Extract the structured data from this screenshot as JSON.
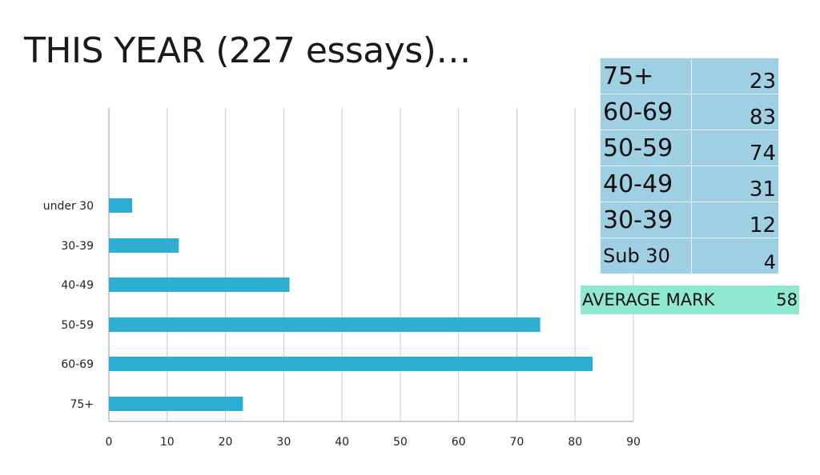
{
  "title": "THIS YEAR (227 essays)…",
  "chart_data": {
    "type": "bar",
    "orientation": "horizontal",
    "categories": [
      "under 30",
      "30-39",
      "40-49",
      "50-59",
      "60-69",
      "75+"
    ],
    "values": [
      4,
      12,
      31,
      74,
      83,
      23
    ],
    "xlim": [
      0,
      90
    ],
    "xticks": [
      0,
      10,
      20,
      30,
      40,
      50,
      60,
      70,
      80,
      90
    ],
    "grid": true,
    "bar_color": "#2eaed2"
  },
  "table": {
    "rows": [
      {
        "label": "75+",
        "value": "23"
      },
      {
        "label": "60-69",
        "value": "83"
      },
      {
        "label": "50-59",
        "value": "74"
      },
      {
        "label": "40-49",
        "value": "31"
      },
      {
        "label": "30-39",
        "value": "12"
      },
      {
        "label": "Sub 30",
        "value": "4"
      }
    ],
    "color": "#9fcfe3"
  },
  "average": {
    "label": "AVERAGE MARK",
    "value": "58",
    "color": "#8fe8d0"
  }
}
